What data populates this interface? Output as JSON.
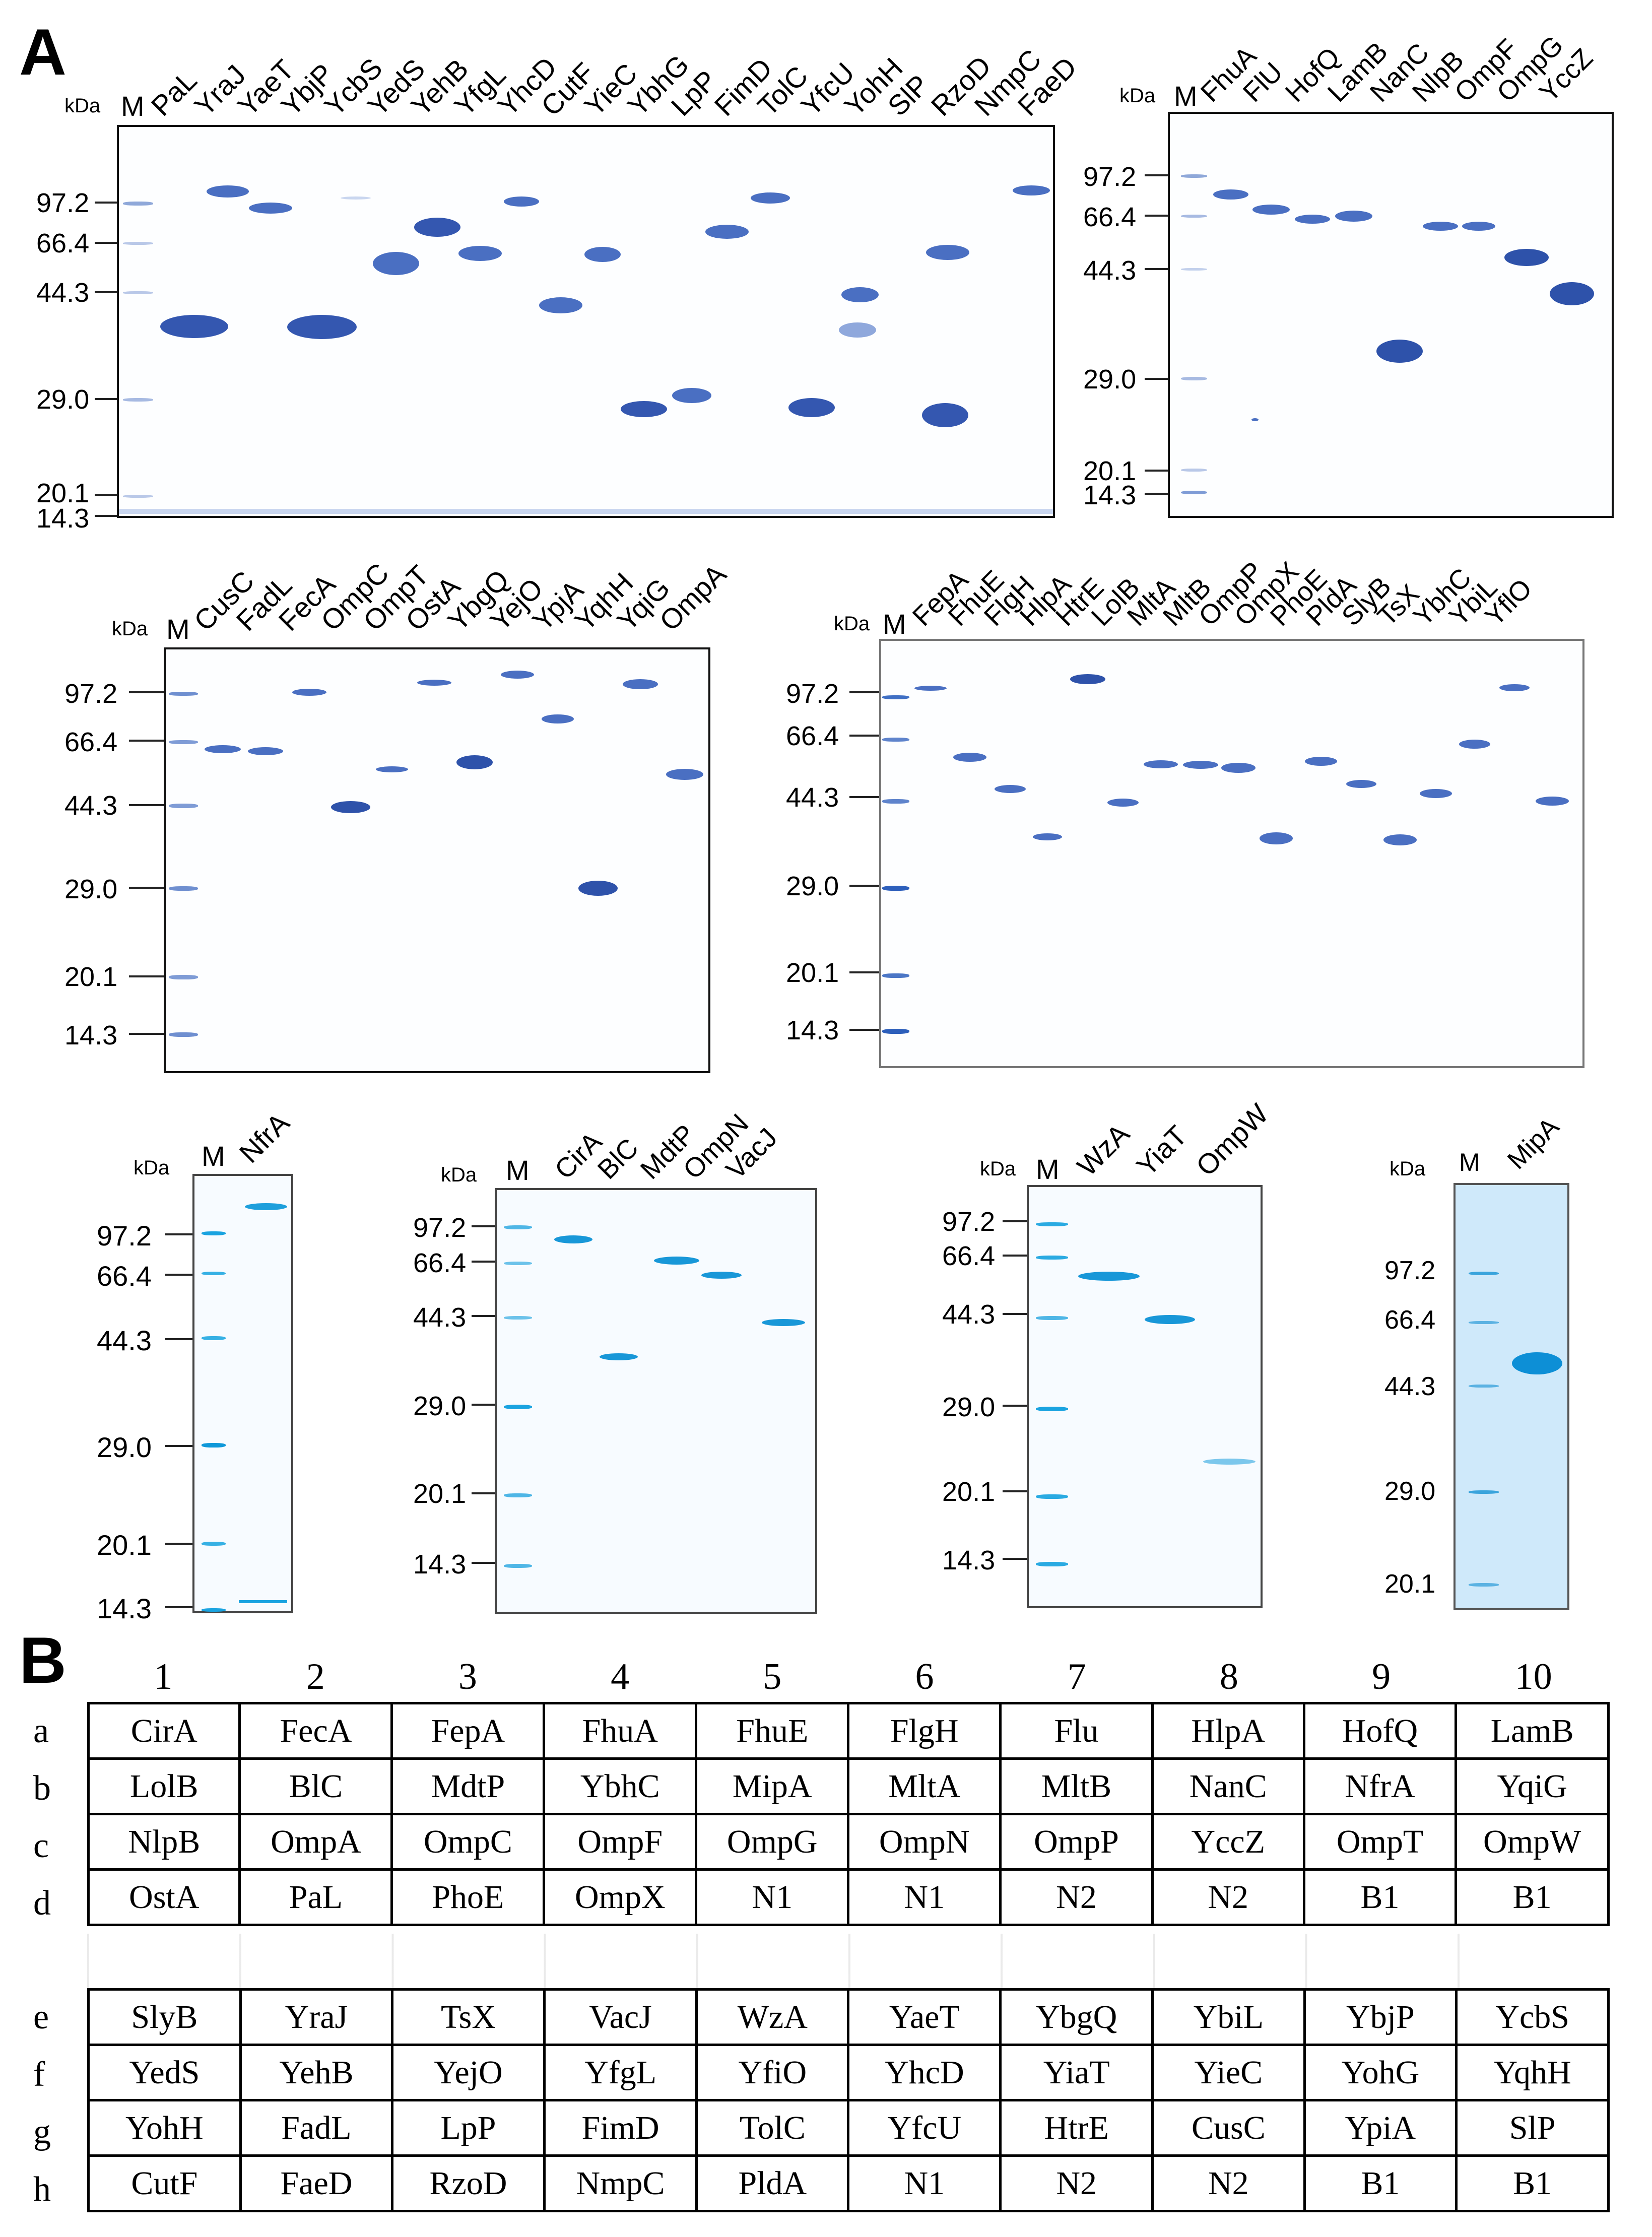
{
  "panels": {
    "a": "A",
    "b": "B"
  },
  "common": {
    "kda": "kDa",
    "marker": "M"
  },
  "markers": {
    "m97": "97.2",
    "m66": "66.4",
    "m44": "44.3",
    "m29": "29.0",
    "m20": "20.1",
    "m14": "14.3"
  },
  "gel1": {
    "lanes": [
      "PaL",
      "YraJ",
      "YaeT",
      "YbjP",
      "YcbS",
      "YedS",
      "YehB",
      "YfgL",
      "YhcD",
      "CutF",
      "YieC",
      "YbhG",
      "LpP",
      "FimD",
      "TolC",
      "YfcU",
      "YohH",
      "SlP",
      "RzoD",
      "NmpC",
      "FaeD"
    ]
  },
  "gel2": {
    "lanes": [
      "FhuA",
      "FlU",
      "HofQ",
      "LamB",
      "NanC",
      "NlpB",
      "OmpF",
      "OmpG",
      "YccZ"
    ]
  },
  "gel3": {
    "lanes": [
      "CusC",
      "FadL",
      "FecA",
      "OmpC",
      "OmpT",
      "OstA",
      "YbgQ",
      "YejO",
      "YpjA",
      "YqhH",
      "YqiG",
      "OmpA"
    ]
  },
  "gel4": {
    "lanes": [
      "FepA",
      "FhuE",
      "FlgH",
      "HlpA",
      "HtrE",
      "LolB",
      "MltA",
      "MltB",
      "OmpP",
      "OmpX",
      "PhoE",
      "PldA",
      "SlyB",
      "TsX",
      "YbhC",
      "YbiL",
      "YflO"
    ]
  },
  "gel5": {
    "lanes": [
      "NfrA"
    ]
  },
  "gel6": {
    "lanes": [
      "CirA",
      "BlC",
      "MdtP",
      "OmpN",
      "VacJ"
    ]
  },
  "gel7": {
    "lanes": [
      "WzA",
      "YiaT",
      "OmpW"
    ]
  },
  "gel8": {
    "lanes": [
      "MipA"
    ],
    "markers": [
      "97.2",
      "66.4",
      "44.3",
      "29.0",
      "20.1"
    ]
  },
  "plate": {
    "columns": [
      "1",
      "2",
      "3",
      "4",
      "5",
      "6",
      "7",
      "8",
      "9",
      "10"
    ],
    "rows_top": [
      {
        "letter": "a",
        "cells": [
          "CirA",
          "FecA",
          "FepA",
          "FhuA",
          "FhuE",
          "FlgH",
          "Flu",
          "HlpA",
          "HofQ",
          "LamB"
        ]
      },
      {
        "letter": "b",
        "cells": [
          "LolB",
          "BlC",
          "MdtP",
          "YbhC",
          "MipA",
          "MltA",
          "MltB",
          "NanC",
          "NfrA",
          "YqiG"
        ]
      },
      {
        "letter": "c",
        "cells": [
          "NlpB",
          "OmpA",
          "OmpC",
          "OmpF",
          "OmpG",
          "OmpN",
          "OmpP",
          "YccZ",
          "OmpT",
          "OmpW"
        ]
      },
      {
        "letter": "d",
        "cells": [
          "OstA",
          "PaL",
          "PhoE",
          "OmpX",
          "N1",
          "N1",
          "N2",
          "N2",
          "B1",
          "B1"
        ]
      }
    ],
    "rows_bottom": [
      {
        "letter": "e",
        "cells": [
          "SlyB",
          "YraJ",
          "TsX",
          "VacJ",
          "WzA",
          "YaeT",
          "YbgQ",
          "YbiL",
          "YbjP",
          "YcbS"
        ]
      },
      {
        "letter": "f",
        "cells": [
          "YedS",
          "YehB",
          "YejO",
          "YfgL",
          "YfiO",
          "YhcD",
          "YiaT",
          "YieC",
          "YohG",
          "YqhH"
        ]
      },
      {
        "letter": "g",
        "cells": [
          "YohH",
          "FadL",
          "LpP",
          "FimD",
          "TolC",
          "YfcU",
          "HtrE",
          "CusC",
          "YpiA",
          "SlP"
        ]
      },
      {
        "letter": "h",
        "cells": [
          "CutF",
          "FaeD",
          "RzoD",
          "NmpC",
          "PldA",
          "N1",
          "N2",
          "N2",
          "B1",
          "B1"
        ]
      }
    ]
  }
}
